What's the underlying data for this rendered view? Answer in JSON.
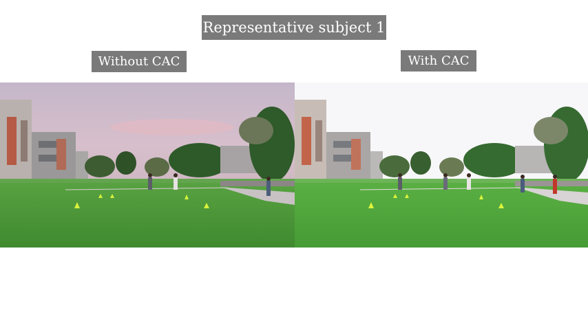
{
  "header": {
    "title": "Representative subject 1"
  },
  "panels": [
    {
      "label": "Without CAC",
      "icon": "campus-field-photo-icon",
      "sky": "#c9b8cc",
      "grass": "#4f9a3a"
    },
    {
      "label": "With CAC",
      "icon": "campus-field-photo-icon",
      "sky": "#f6f6f8",
      "grass": "#4fa63a"
    }
  ]
}
